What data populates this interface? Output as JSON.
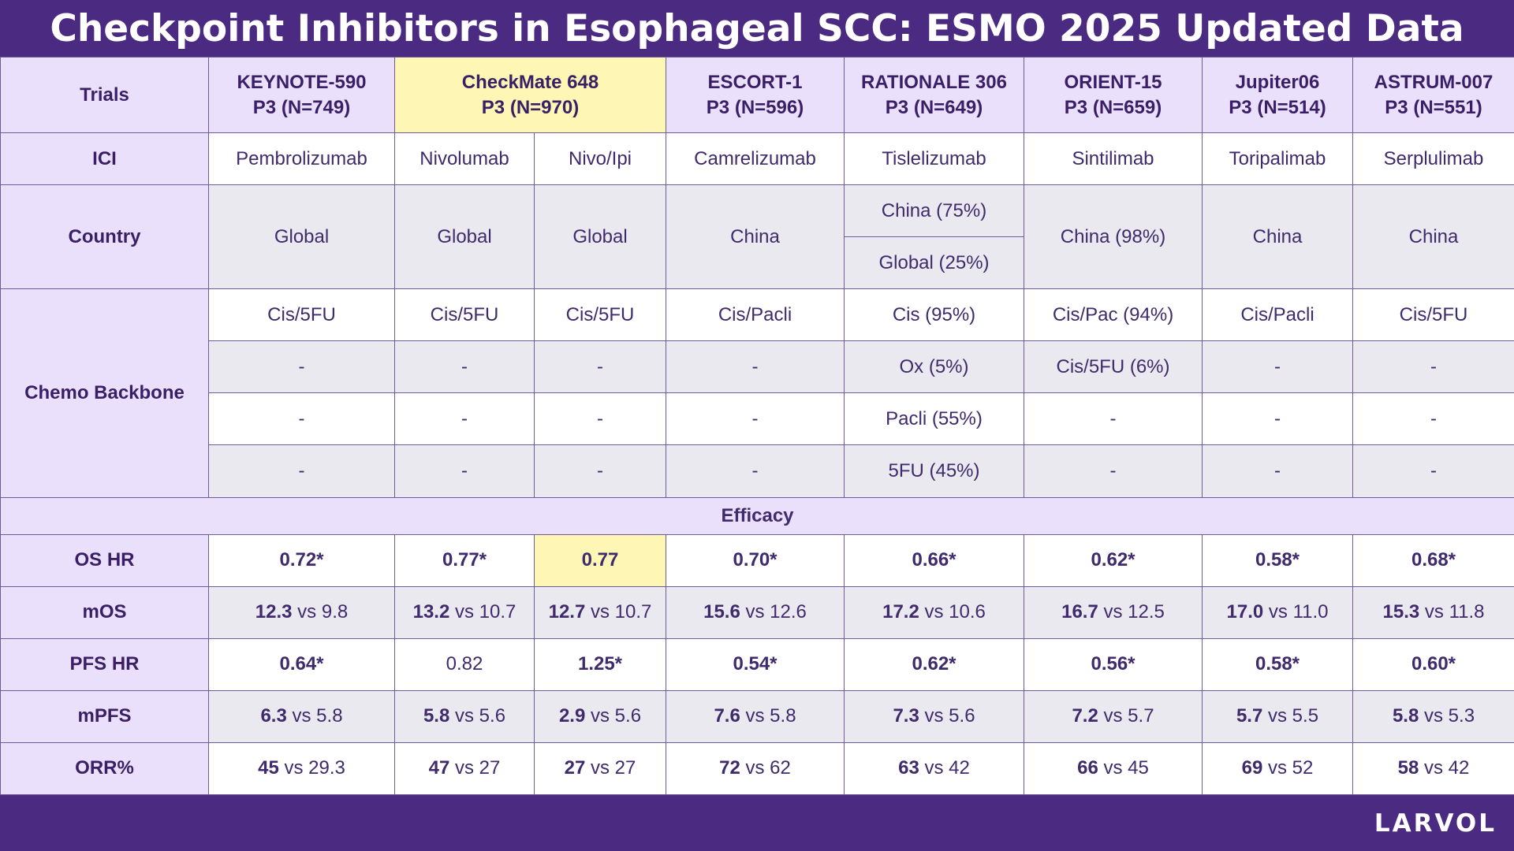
{
  "title": "Checkpoint Inhibitors in Esophageal SCC: ESMO 2025 Updated Data",
  "logo": "LARVOL",
  "row_labels": {
    "trials": "Trials",
    "ici": "ICI",
    "country": "Country",
    "chemo": "Chemo Backbone",
    "os_hr": "OS HR",
    "mos": "mOS",
    "pfs_hr": "PFS HR",
    "mpfs": "mPFS",
    "orr": "ORR%"
  },
  "section_efficacy": "Efficacy",
  "highlight_color": "#fdf6b5",
  "chart_data": {
    "type": "table",
    "trials": [
      {
        "name": "KEYNOTE-590",
        "design": "P3 (N=749)"
      },
      {
        "name": "CheckMate 648",
        "design": "P3 (N=970)"
      },
      {
        "name": "ESCORT-1",
        "design": "P3 (N=596)"
      },
      {
        "name": "RATIONALE 306",
        "design": "P3 (N=649)"
      },
      {
        "name": "ORIENT-15",
        "design": "P3 (N=659)"
      },
      {
        "name": "Jupiter06",
        "design": "P3 (N=514)"
      },
      {
        "name": "ASTRUM-007",
        "design": "P3 (N=551)"
      }
    ],
    "ici": [
      "Pembrolizumab",
      "Nivolumab",
      "Nivo/Ipi",
      "Camrelizumab",
      "Tislelizumab",
      "Sintilimab",
      "Toripalimab",
      "Serplulimab"
    ],
    "country": {
      "keynote": "Global",
      "nivo": "Global",
      "nivoipi": "Global",
      "escort": "China",
      "rationale_1": "China (75%)",
      "rationale_2": "Global (25%)",
      "orient": "China (98%)",
      "jupiter": "China",
      "astrum": "China"
    },
    "chemo": [
      [
        "Cis/5FU",
        "Cis/5FU",
        "Cis/5FU",
        "Cis/Pacli",
        "Cis (95%)",
        "Cis/Pac (94%)",
        "Cis/Pacli",
        "Cis/5FU"
      ],
      [
        "-",
        "-",
        "-",
        "-",
        "Ox (5%)",
        "Cis/5FU (6%)",
        "-",
        "-"
      ],
      [
        "-",
        "-",
        "-",
        "-",
        "Pacli (55%)",
        "-",
        "-",
        "-"
      ],
      [
        "-",
        "-",
        "-",
        "-",
        "5FU (45%)",
        "-",
        "-",
        "-"
      ]
    ],
    "os_hr": [
      "0.72*",
      "0.77*",
      "0.77",
      "0.70*",
      "0.66*",
      "0.62*",
      "0.58*",
      "0.68*"
    ],
    "mos": [
      {
        "a": "12.3",
        "b": "9.8"
      },
      {
        "a": "13.2",
        "b": "10.7"
      },
      {
        "a": "12.7",
        "b": "10.7"
      },
      {
        "a": "15.6",
        "b": "12.6"
      },
      {
        "a": "17.2",
        "b": "10.6"
      },
      {
        "a": "16.7",
        "b": "12.5"
      },
      {
        "a": "17.0",
        "b": "11.0"
      },
      {
        "a": "15.3",
        "b": "11.8"
      }
    ],
    "pfs_hr": [
      "0.64*",
      "0.82",
      "1.25*",
      "0.54*",
      "0.62*",
      "0.56*",
      "0.58*",
      "0.60*"
    ],
    "mpfs": [
      {
        "a": "6.3",
        "b": "5.8"
      },
      {
        "a": "5.8",
        "b": "5.6"
      },
      {
        "a": "2.9",
        "b": "5.6"
      },
      {
        "a": "7.6",
        "b": "5.8"
      },
      {
        "a": "7.3",
        "b": "5.6"
      },
      {
        "a": "7.2",
        "b": "5.7"
      },
      {
        "a": "5.7",
        "b": "5.5"
      },
      {
        "a": "5.8",
        "b": "5.3"
      }
    ],
    "orr": [
      {
        "a": "45",
        "b": "29.3"
      },
      {
        "a": "47",
        "b": "27"
      },
      {
        "a": "27",
        "b": "27"
      },
      {
        "a": "72",
        "b": "62"
      },
      {
        "a": "63",
        "b": "42"
      },
      {
        "a": "66",
        "b": "45"
      },
      {
        "a": "69",
        "b": "52"
      },
      {
        "a": "58",
        "b": "42"
      }
    ],
    "vs_word": "vs"
  }
}
